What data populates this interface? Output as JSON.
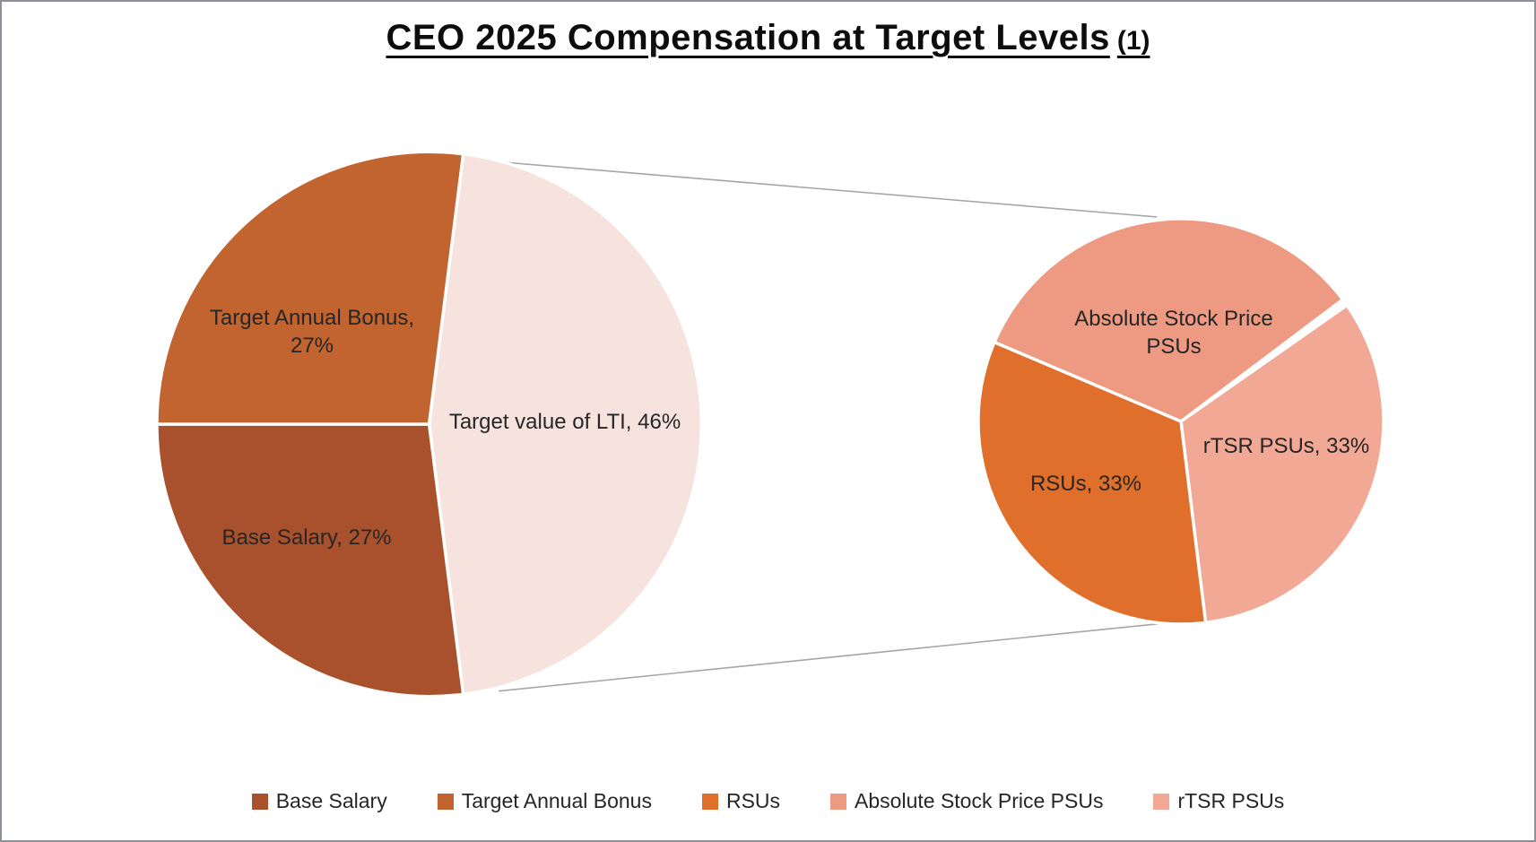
{
  "title": {
    "main": "CEO 2025 Compensation at Target Levels",
    "suffix": "(1)"
  },
  "chart_data": {
    "type": "pie-of-pie",
    "title": "CEO 2025 Compensation at Target Levels (1)",
    "grid": "off",
    "legend_position": "bottom",
    "connector_color": "#a6a6a6",
    "slice_border_color": "#ffffff",
    "main_pie": {
      "center": [
        477,
        473
      ],
      "radius": 305,
      "slices": [
        {
          "name": "Target value of LTI",
          "label": "Target value of LTI, 46%",
          "value": 46,
          "color": "#f7e3dd",
          "start": 7.2,
          "end": 172.8
        },
        {
          "name": "Base Salary",
          "label": "Base Salary, 27%",
          "value": 27,
          "color": "#a9512c",
          "start": 172.8,
          "end": 270
        },
        {
          "name": "Target Annual Bonus",
          "label": "Target Annual Bonus, 27%",
          "value": 27,
          "color": "#c2642f",
          "start": 270,
          "end": 367.2
        }
      ]
    },
    "secondary_pie": {
      "center": [
        1319,
        470
      ],
      "radius": 227,
      "slices": [
        {
          "name": "Absolute Stock Price PSUs",
          "label": "Absolute Stock Price PSUs",
          "value": 33,
          "color": "#ee9982",
          "start": 293,
          "end": 413
        },
        {
          "name": "rTSR PSUs",
          "label": "rTSR PSUs, 33%",
          "value": 33,
          "color": "#f1a995",
          "start": 55,
          "end": 173
        },
        {
          "name": "RSUs",
          "label": "RSUs, 33%",
          "value": 33,
          "color": "#e06f2c",
          "start": 173,
          "end": 293
        }
      ]
    },
    "connector_lines": [
      [
        552,
        179,
        1292,
        241
      ],
      [
        555,
        772,
        1300,
        696
      ]
    ],
    "legend": [
      {
        "label": "Base Salary",
        "color": "#a9512c"
      },
      {
        "label": "Target Annual Bonus",
        "color": "#c2642f"
      },
      {
        "label": "RSUs",
        "color": "#e06f2c"
      },
      {
        "label": "Absolute Stock Price PSUs",
        "color": "#ee9982"
      },
      {
        "label": "rTSR PSUs",
        "color": "#f1a995"
      }
    ]
  }
}
